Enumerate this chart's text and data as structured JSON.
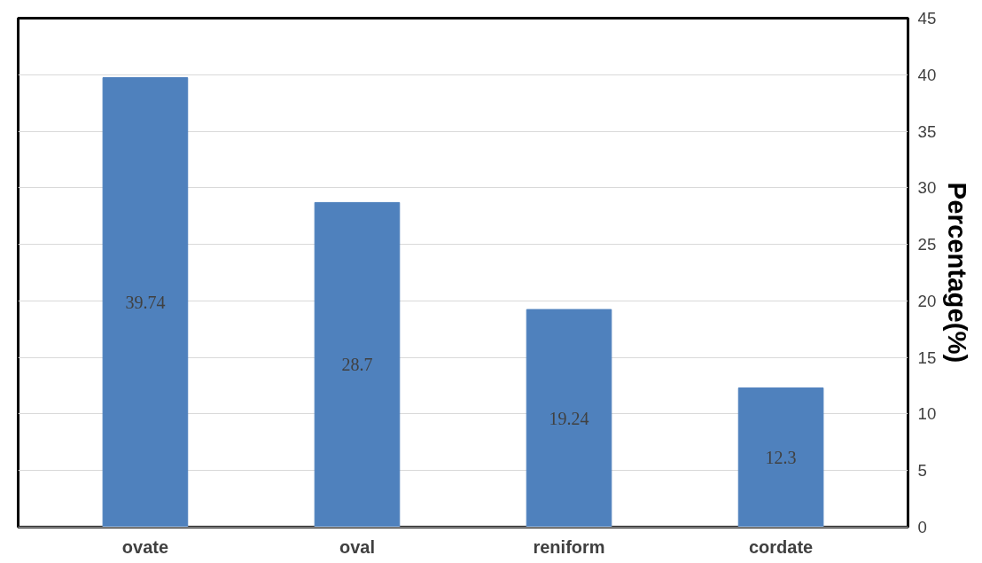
{
  "chart_data": {
    "type": "bar",
    "categories": [
      "ovate",
      "oval",
      "reniform",
      "cordate"
    ],
    "values": [
      39.74,
      28.7,
      19.24,
      12.3
    ],
    "color": "#4f81bd",
    "ylabel": "Percentage(%)",
    "ylim": [
      0,
      45
    ],
    "yticks": [
      0,
      5,
      10,
      15,
      20,
      25,
      30,
      35,
      40,
      45
    ],
    "grid": "y",
    "data_labels": true
  }
}
